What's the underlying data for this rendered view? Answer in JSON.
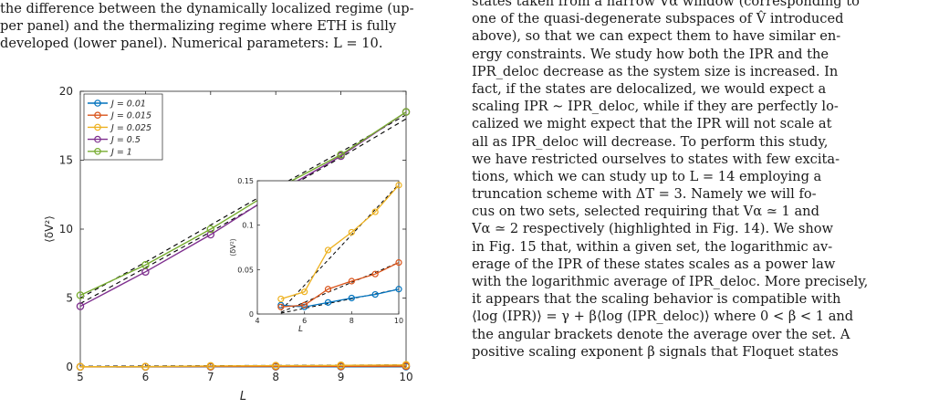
{
  "left_caption_lines": [
    "the difference between the dynamically localized regime (up-",
    "per panel) and the thermalizing regime where ETH is fully",
    "developed (lower panel). Numerical parameters: L = 10."
  ],
  "right_text_lines": [
    "states taken from a narrow Vα window (corresponding to",
    "one of the quasi-degenerate subspaces of V̂ introduced",
    "above), so that we can expect them to have similar en-",
    "ergy constraints. We study how both the IPR and the",
    "IPR_deloc decrease as the system size is increased. In",
    "fact, if the states are delocalized, we would expect a",
    "scaling IPR ∼ IPR_deloc, while if they are perfectly lo-",
    "calized we might expect that the IPR will not scale at",
    "all as IPR_deloc will decrease. To perform this study,",
    "we have restricted ourselves to states with few excita-",
    "tions, which we can study up to L = 14 employing a",
    "truncation scheme with ΔT = 3. Namely we will fo-",
    "cus on two sets, selected requiring that Vα ≃ 1 and",
    "Vα ≃ 2 respectively (highlighted in Fig. 14). We show",
    "in Fig. 15 that, within a given set, the logarithmic av-",
    "erage of the IPR of these states scales as a power law",
    "with the logarithmic average of IPR_deloc. More precisely,",
    "it appears that the scaling behavior is compatible with",
    "⟨log (IPR)⟩ = γ + β⟨log (IPR_deloc)⟩ where 0 < β < 1 and",
    "the angular brackets denote the average over the set. A",
    "positive scaling exponent β signals that Floquet states"
  ],
  "chart_data": {
    "type": "line",
    "xlabel": "L",
    "ylabel": "⟨δV²⟩",
    "x": [
      5,
      6,
      7,
      8,
      9,
      10
    ],
    "xlim": [
      5,
      10
    ],
    "ylim": [
      0,
      20
    ],
    "xticks": [
      "5",
      "6",
      "7",
      "8",
      "9",
      "10"
    ],
    "yticks": [
      "0",
      "5",
      "10",
      "15",
      "20"
    ],
    "legend_position": "top-left",
    "series": [
      {
        "name": "J = 0.01",
        "color": "#0072bd",
        "values": [
          0.01,
          0.008,
          0.013,
          0.018,
          0.022,
          0.028
        ]
      },
      {
        "name": "J = 0.015",
        "color": "#d95319",
        "values": [
          0.008,
          0.01,
          0.028,
          0.037,
          0.045,
          0.058
        ]
      },
      {
        "name": "J = 0.025",
        "color": "#edb120",
        "values": [
          0.017,
          0.025,
          0.072,
          0.092,
          0.115,
          0.145
        ]
      },
      {
        "name": "J = 0.5",
        "color": "#7e2f8e",
        "values": [
          4.4,
          6.9,
          9.6,
          12.6,
          15.3,
          18.5
        ]
      },
      {
        "name": "J = 1",
        "color": "#77ac30",
        "values": [
          5.2,
          7.4,
          10.0,
          12.9,
          15.4,
          18.5
        ]
      }
    ],
    "fits": [
      {
        "values": [
          5.0,
          7.6,
          10.3,
          13.0,
          15.6,
          18.3
        ]
      },
      {
        "values": [
          4.6,
          7.2,
          9.8,
          12.5,
          15.2,
          18.0
        ]
      }
    ],
    "inset": {
      "xlabel": "L",
      "ylabel": "⟨δV²⟩",
      "xlim": [
        4,
        10
      ],
      "ylim": [
        0,
        0.15
      ],
      "xticks": [
        "4",
        "6",
        "8",
        "10"
      ],
      "yticks": [
        "0",
        "0.05",
        "0.1",
        "0.15"
      ],
      "series_indices": [
        0,
        1,
        2
      ],
      "fits": [
        {
          "x": [
            5,
            10
          ],
          "values": [
            0.001,
            0.028
          ]
        },
        {
          "x": [
            5,
            10
          ],
          "values": [
            0.002,
            0.058
          ]
        },
        {
          "x": [
            5,
            10
          ],
          "values": [
            0.004,
            0.146
          ]
        }
      ]
    }
  }
}
